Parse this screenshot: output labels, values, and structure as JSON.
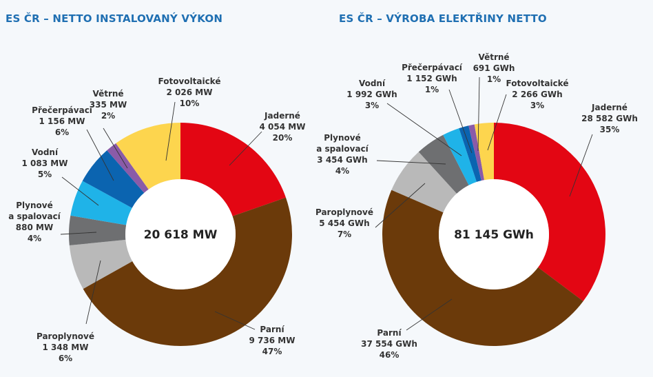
{
  "chart_data": [
    {
      "type": "pie",
      "title": "ES ČR – NETTO INSTALOVANÝ VÝKON",
      "center_label": "20 618 MW",
      "unit": "MW",
      "slices": [
        {
          "name": "Jaderné",
          "value": 4054,
          "value_label": "4 054 MW",
          "percent_label": "20%",
          "color": "#e30613"
        },
        {
          "name": "Parní",
          "value": 9736,
          "value_label": "9 736 MW",
          "percent_label": "47%",
          "color": "#6b3a0a"
        },
        {
          "name": "Paroplynové",
          "value": 1348,
          "value_label": "1 348 MW",
          "percent_label": "6%",
          "color": "#b9b9b9"
        },
        {
          "name": "Plynové|a spalovací",
          "value": 880,
          "value_label": "880 MW",
          "percent_label": "4%",
          "color": "#6e6f71"
        },
        {
          "name": "Vodní",
          "value": 1083,
          "value_label": "1 083 MW",
          "percent_label": "5%",
          "color": "#1fb3e8"
        },
        {
          "name": "Přečerpávací",
          "value": 1156,
          "value_label": "1 156 MW",
          "percent_label": "6%",
          "color": "#0b64b0"
        },
        {
          "name": "Větrné",
          "value": 335,
          "value_label": "335 MW",
          "percent_label": "2%",
          "color": "#8a5ba8"
        },
        {
          "name": "Fotovoltaické",
          "value": 2026,
          "value_label": "2 026 MW",
          "percent_label": "10%",
          "color": "#fdd54e"
        }
      ]
    },
    {
      "type": "pie",
      "title": "ES ČR – VÝROBA ELEKTŘINY NETTO",
      "center_label": "81 145 GWh",
      "unit": "GWh",
      "slices": [
        {
          "name": "Jaderné",
          "value": 28582,
          "value_label": "28 582 GWh",
          "percent_label": "35%",
          "color": "#e30613"
        },
        {
          "name": "Parní",
          "value": 37554,
          "value_label": "37 554 GWh",
          "percent_label": "46%",
          "color": "#6b3a0a"
        },
        {
          "name": "Paroplynové",
          "value": 5454,
          "value_label": "5 454 GWh",
          "percent_label": "7%",
          "color": "#b9b9b9"
        },
        {
          "name": "Plynové|a spalovací",
          "value": 3454,
          "value_label": "3 454 GWh",
          "percent_label": "4%",
          "color": "#6e6f71"
        },
        {
          "name": "Vodní",
          "value": 1992,
          "value_label": "1 992 GWh",
          "percent_label": "3%",
          "color": "#1fb3e8"
        },
        {
          "name": "Přečerpávací",
          "value": 1152,
          "value_label": "1 152 GWh",
          "percent_label": "1%",
          "color": "#0b64b0"
        },
        {
          "name": "Větrné",
          "value": 691,
          "value_label": "691 GWh",
          "percent_label": "1%",
          "color": "#8a5ba8"
        },
        {
          "name": "Fotovoltaické",
          "value": 2266,
          "value_label": "2 266 GWh",
          "percent_label": "3%",
          "color": "#fdd54e"
        }
      ]
    }
  ]
}
